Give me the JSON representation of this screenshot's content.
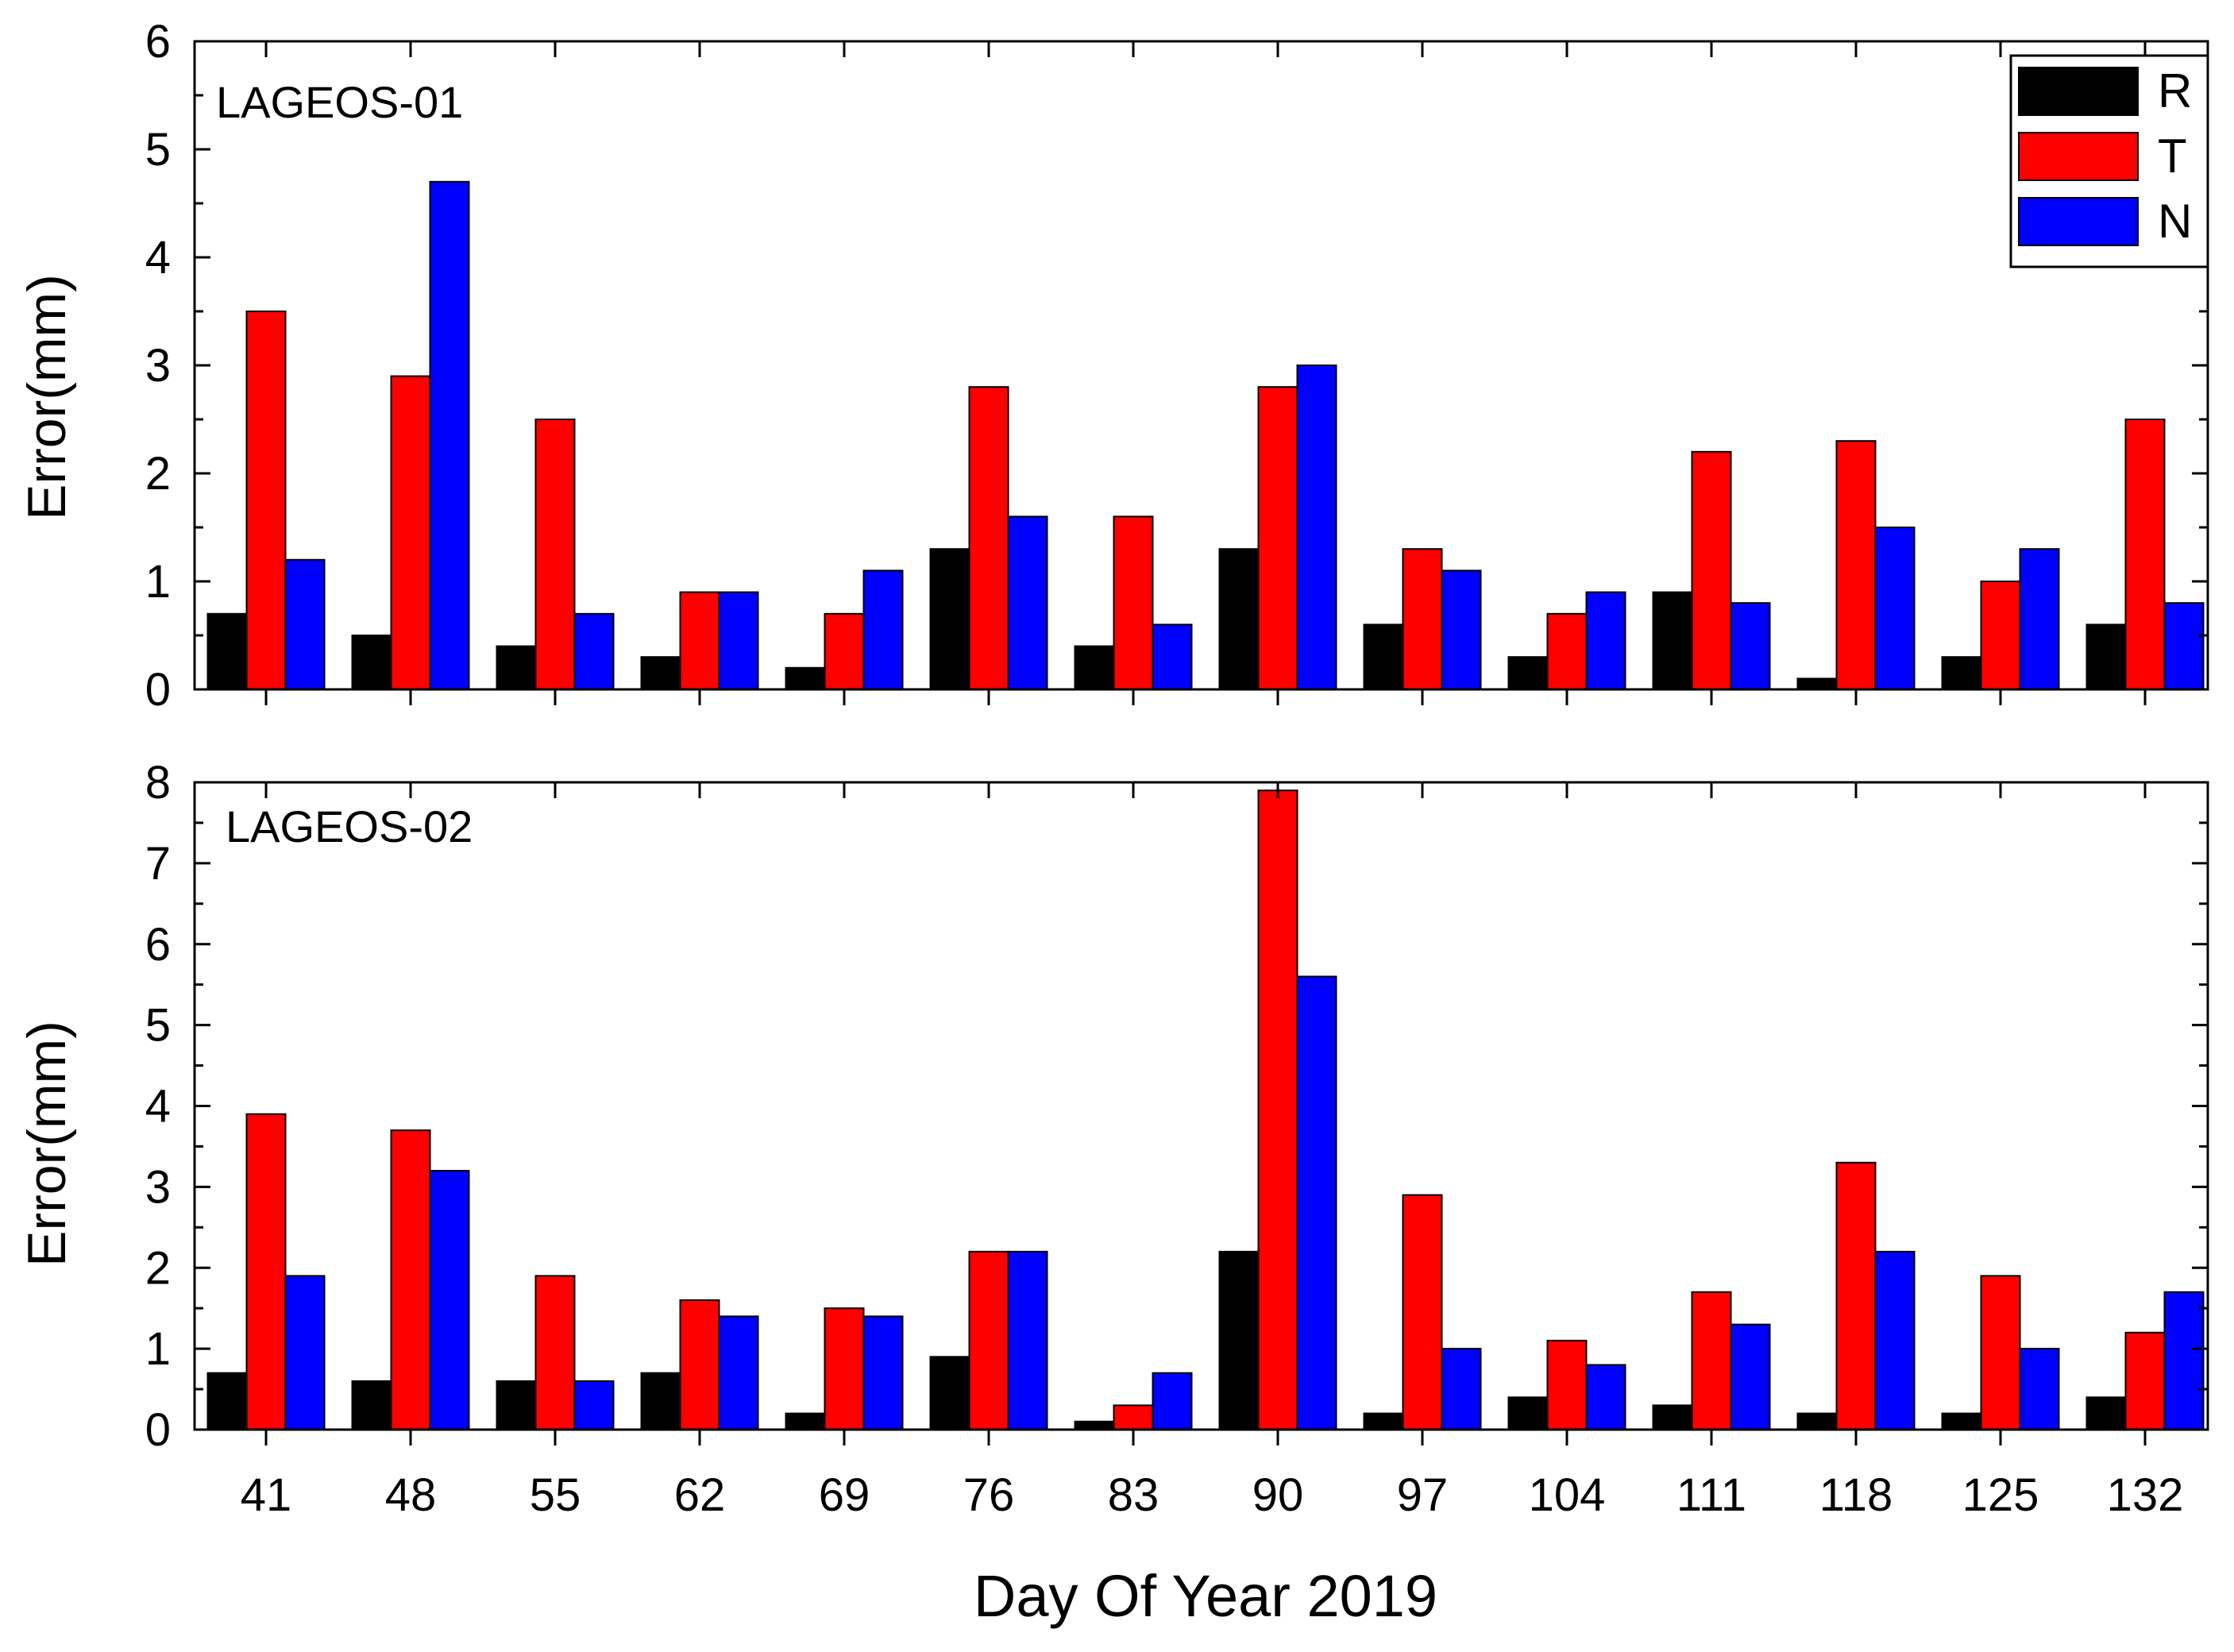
{
  "chart_data": [
    {
      "type": "bar",
      "panel_label": "LAGEOS-01",
      "categories": [
        "41",
        "48",
        "55",
        "62",
        "69",
        "76",
        "83",
        "90",
        "97",
        "104",
        "111",
        "118",
        "125",
        "132"
      ],
      "series": [
        {
          "name": "R",
          "color": "#000000",
          "values": [
            0.7,
            0.5,
            0.4,
            0.3,
            0.2,
            1.3,
            0.4,
            1.3,
            0.6,
            0.3,
            0.9,
            0.1,
            0.3,
            0.6
          ]
        },
        {
          "name": "T",
          "color": "#ff0000",
          "values": [
            3.5,
            2.9,
            2.5,
            0.9,
            0.7,
            2.8,
            1.6,
            2.8,
            1.3,
            0.7,
            2.2,
            2.3,
            1.0,
            2.5
          ]
        },
        {
          "name": "N",
          "color": "#0000ff",
          "values": [
            1.2,
            4.7,
            0.7,
            0.9,
            1.1,
            1.6,
            0.6,
            3.0,
            1.1,
            0.9,
            0.8,
            1.5,
            1.3,
            0.8
          ]
        }
      ],
      "ylabel": "Error(mm)",
      "ylim": [
        0,
        6
      ],
      "yticks": [
        "0",
        "1",
        "2",
        "3",
        "4",
        "5",
        "6"
      ],
      "legend": "top-right",
      "grid": false
    },
    {
      "type": "bar",
      "panel_label": "LAGEOS-02",
      "categories": [
        "41",
        "48",
        "55",
        "62",
        "69",
        "76",
        "83",
        "90",
        "97",
        "104",
        "111",
        "118",
        "125",
        "132"
      ],
      "series": [
        {
          "name": "R",
          "color": "#000000",
          "values": [
            0.7,
            0.6,
            0.6,
            0.7,
            0.2,
            0.9,
            0.1,
            2.2,
            0.2,
            0.4,
            0.3,
            0.2,
            0.2,
            0.4
          ]
        },
        {
          "name": "T",
          "color": "#ff0000",
          "values": [
            3.9,
            3.7,
            1.9,
            1.6,
            1.5,
            2.2,
            0.3,
            7.9,
            2.9,
            1.1,
            1.7,
            3.3,
            1.9,
            1.2
          ]
        },
        {
          "name": "N",
          "color": "#0000ff",
          "values": [
            1.9,
            3.2,
            0.6,
            1.4,
            1.4,
            2.2,
            0.7,
            5.6,
            1.0,
            0.8,
            1.3,
            2.2,
            1.0,
            1.7
          ]
        }
      ],
      "xlabel": "Day Of Year 2019",
      "ylabel": "Error(mm)",
      "ylim": [
        0,
        8
      ],
      "yticks": [
        "0",
        "1",
        "2",
        "3",
        "4",
        "5",
        "6",
        "7",
        "8"
      ],
      "grid": false
    }
  ]
}
